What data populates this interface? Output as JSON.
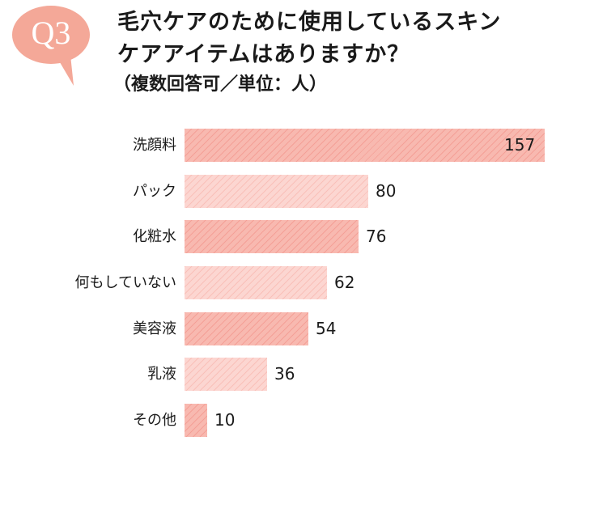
{
  "badge": {
    "label": "Q3",
    "color": "#f4a898"
  },
  "title": {
    "line1": "毛穴ケアのために使用しているスキン",
    "line2": "ケアアイテムはありますか？",
    "subtitle": "（複数回答可／単位：人）"
  },
  "colors": {
    "bar_dark": "#f8b9b0",
    "bar_light": "#fcd6d1"
  },
  "chart_data": {
    "type": "bar",
    "orientation": "horizontal",
    "title": "毛穴ケアのために使用しているスキンケアアイテムはありますか？",
    "subtitle": "（複数回答可／単位：人）",
    "categories": [
      "洗顔料",
      "パック",
      "化粧水",
      "何もしていない",
      "美容液",
      "乳液",
      "その他"
    ],
    "values": [
      157,
      80,
      76,
      62,
      54,
      36,
      10
    ],
    "value_labels": [
      "157",
      "80",
      "76",
      "62",
      "54",
      "36",
      "10"
    ],
    "xlabel": "",
    "ylabel": "",
    "xlim": [
      0,
      157
    ],
    "grid": false,
    "legend": "none"
  }
}
